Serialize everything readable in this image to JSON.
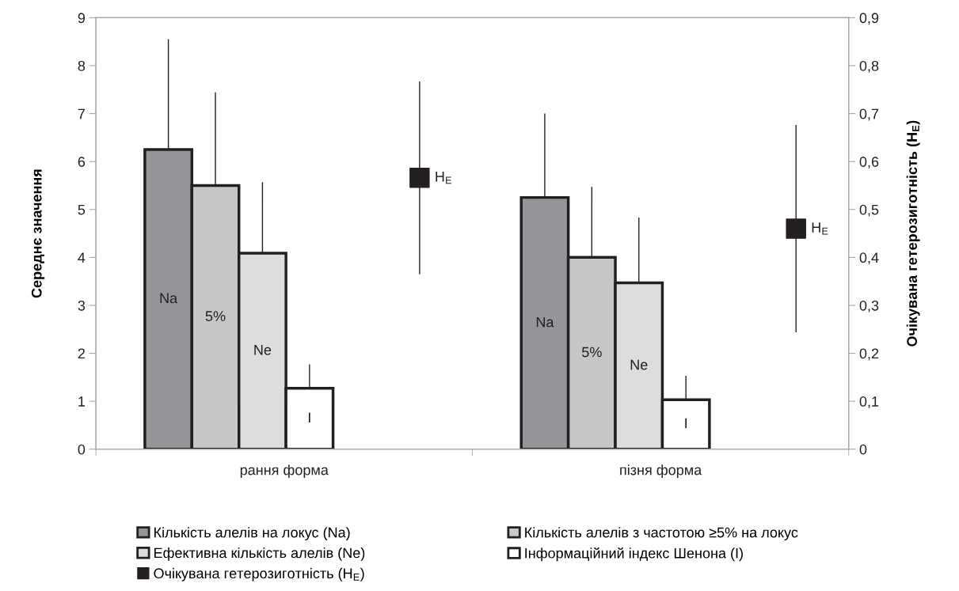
{
  "chart_data": {
    "type": "bar",
    "categories": [
      "рання форма",
      "пізня форма"
    ],
    "ylabel": "Середнє значення",
    "y2label": "Очікувана гетерозиготність (H$_{E}$)",
    "ylim": [
      0,
      9
    ],
    "yticks": [
      0,
      1,
      2,
      3,
      4,
      5,
      6,
      7,
      8,
      9
    ],
    "y2lim": [
      0,
      0.9
    ],
    "y2ticks": [
      {
        "value": 0,
        "label": "0"
      },
      {
        "value": 0.1,
        "label": "0,1"
      },
      {
        "value": 0.2,
        "label": "0,2"
      },
      {
        "value": 0.3,
        "label": "0,3"
      },
      {
        "value": 0.4,
        "label": "0,4"
      },
      {
        "value": 0.5,
        "label": "0,5"
      },
      {
        "value": 0.6,
        "label": "0,6"
      },
      {
        "value": 0.7,
        "label": "0,7"
      },
      {
        "value": 0.8,
        "label": "0,8"
      },
      {
        "value": 0.9,
        "label": "0,9"
      }
    ],
    "series": [
      {
        "name": "Кількість алелів на локус (Na)",
        "color": "#939598",
        "values": [
          6.25,
          5.25
        ],
        "errors": [
          [
            6.25,
            8.54
          ],
          [
            5.25,
            6.99
          ]
        ]
      },
      {
        "name": "Кількість алелів з частотою ≥5% на локус",
        "color": "#c6c7c9",
        "values": [
          5.5,
          4.0
        ],
        "errors": [
          [
            5.5,
            7.43
          ],
          [
            4.0,
            5.46
          ]
        ]
      },
      {
        "name": "Ефективна кількість алелів (Ne)",
        "color": "#dcdddf",
        "values": [
          4.09,
          3.47
        ],
        "errors": [
          [
            4.09,
            5.56
          ],
          [
            3.47,
            4.82
          ]
        ]
      },
      {
        "name": "Інформаційний індекс Шенона (I)",
        "color": "#ffffff",
        "values": [
          1.27,
          1.03
        ],
        "errors": [
          [
            1.27,
            1.76
          ],
          [
            1.03,
            1.52
          ]
        ]
      },
      {
        "name": "Очікувана гетерозиготність (H$_{E}$)",
        "type": "scatter",
        "axis": "y2",
        "color": "#231f20",
        "values": [
          0.566,
          0.46
        ],
        "errors": [
          0.2,
          0.215
        ],
        "marker": "square"
      }
    ],
    "annotations": [
      "Na",
      "5%",
      "Ne",
      "I",
      "H$_{E}$",
      "Na",
      "5%",
      "Ne",
      "I",
      "H$_{E}$"
    ],
    "grid": false,
    "legend": "bottom"
  }
}
